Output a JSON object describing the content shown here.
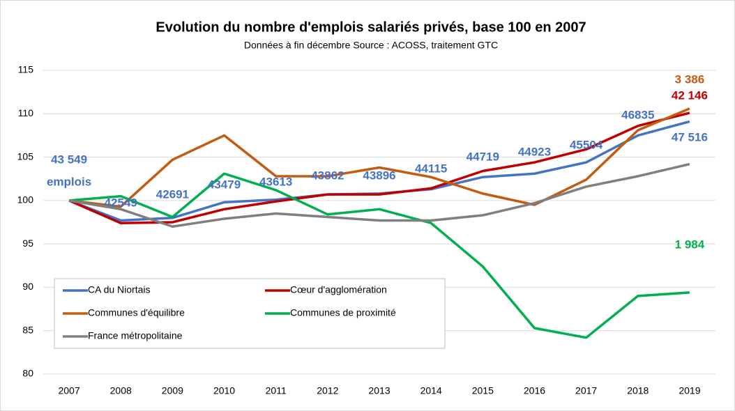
{
  "chart_data": {
    "type": "line",
    "title": "Evolution du nombre d'emplois salariés privés, base 100 en 2007",
    "subtitle": "Données à fin décembre Source : ACOSS, traitement GTC",
    "categories": [
      "2007",
      "2008",
      "2009",
      "2010",
      "2011",
      "2012",
      "2013",
      "2014",
      "2015",
      "2016",
      "2017",
      "2018",
      "2019"
    ],
    "ylim": [
      80,
      115
    ],
    "yticks": [
      80,
      85,
      90,
      95,
      100,
      105,
      110,
      115
    ],
    "grid": true,
    "legend": "lower left",
    "series": [
      {
        "name": "CA du Niortais",
        "color": "#4472c4",
        "values": [
          100,
          97.7,
          98,
          99.8,
          100.1,
          100.7,
          100.8,
          101.3,
          102.7,
          103.1,
          104.4,
          107.5,
          109.1
        ]
      },
      {
        "name": "Cœur d'agglomération",
        "color": "#c00000",
        "values": [
          100,
          97.4,
          97.5,
          99,
          99.9,
          100.7,
          100.7,
          101.4,
          103.4,
          104.4,
          105.9,
          108.6,
          110.1
        ]
      },
      {
        "name": "Communes d'équilibre",
        "color": "#c55a11",
        "values": [
          100,
          99.3,
          104.7,
          107.5,
          102.8,
          102.8,
          103.8,
          102.7,
          100.8,
          99.5,
          102.4,
          108.1,
          110.6
        ]
      },
      {
        "name": "Communes de proximité",
        "color": "#00b050",
        "values": [
          100,
          100.5,
          98.1,
          103.1,
          101.2,
          98.4,
          99,
          97.4,
          92.4,
          85.3,
          84.2,
          89,
          89.4
        ]
      },
      {
        "name": "France métropolitaine",
        "color": "#7f7f7f",
        "values": [
          100,
          99,
          97,
          97.9,
          98.5,
          98.1,
          97.7,
          97.7,
          98.3,
          99.7,
          101.6,
          102.8,
          104.2
        ]
      }
    ],
    "annotations": [
      "43 549",
      "emplois",
      "42549",
      "42691",
      "43479",
      "43613",
      "43862",
      "43896",
      "44115",
      "44719",
      "44923",
      "45504",
      "46835",
      "47 516",
      "3 386",
      "42 146",
      "1 984"
    ]
  }
}
